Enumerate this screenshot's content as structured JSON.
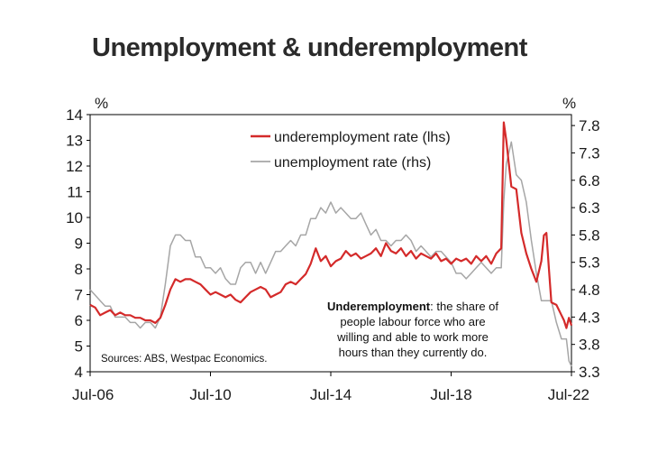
{
  "title": "Unemployment & underemployment",
  "chart_data": {
    "type": "line",
    "x_ticks": [
      "Jul-06",
      "Jul-10",
      "Jul-14",
      "Jul-18",
      "Jul-22"
    ],
    "y_left": {
      "unit": "%",
      "ticks": [
        4,
        5,
        6,
        7,
        8,
        9,
        10,
        11,
        12,
        13,
        14
      ],
      "ylim": [
        4,
        14
      ]
    },
    "y_right": {
      "unit": "%",
      "ticks": [
        "3.3",
        "3.8",
        "4.3",
        "4.8",
        "5.3",
        "5.8",
        "6.3",
        "6.8",
        "7.3",
        "7.8"
      ],
      "ylim": [
        3.3,
        8.0
      ]
    },
    "grid": false,
    "legend_position": "top-center",
    "series": [
      {
        "name": "underemployment rate (lhs)",
        "axis": "left",
        "color": "#d42a2a",
        "points": [
          [
            "2006-07",
            6.6
          ],
          [
            "2006-09",
            6.5
          ],
          [
            "2006-11",
            6.2
          ],
          [
            "2007-01",
            6.3
          ],
          [
            "2007-03",
            6.4
          ],
          [
            "2007-05",
            6.2
          ],
          [
            "2007-07",
            6.3
          ],
          [
            "2007-09",
            6.2
          ],
          [
            "2007-11",
            6.2
          ],
          [
            "2008-01",
            6.1
          ],
          [
            "2008-03",
            6.1
          ],
          [
            "2008-05",
            6.0
          ],
          [
            "2008-07",
            6.0
          ],
          [
            "2008-09",
            5.9
          ],
          [
            "2008-11",
            6.1
          ],
          [
            "2009-01",
            6.6
          ],
          [
            "2009-03",
            7.2
          ],
          [
            "2009-05",
            7.6
          ],
          [
            "2009-07",
            7.5
          ],
          [
            "2009-09",
            7.6
          ],
          [
            "2009-11",
            7.6
          ],
          [
            "2010-01",
            7.5
          ],
          [
            "2010-03",
            7.4
          ],
          [
            "2010-05",
            7.2
          ],
          [
            "2010-07",
            7.0
          ],
          [
            "2010-09",
            7.1
          ],
          [
            "2010-11",
            7.0
          ],
          [
            "2011-01",
            6.9
          ],
          [
            "2011-03",
            7.0
          ],
          [
            "2011-05",
            6.8
          ],
          [
            "2011-07",
            6.7
          ],
          [
            "2011-09",
            6.9
          ],
          [
            "2011-11",
            7.1
          ],
          [
            "2012-01",
            7.2
          ],
          [
            "2012-03",
            7.3
          ],
          [
            "2012-05",
            7.2
          ],
          [
            "2012-07",
            6.9
          ],
          [
            "2012-09",
            7.0
          ],
          [
            "2012-11",
            7.1
          ],
          [
            "2013-01",
            7.4
          ],
          [
            "2013-03",
            7.5
          ],
          [
            "2013-05",
            7.4
          ],
          [
            "2013-07",
            7.6
          ],
          [
            "2013-09",
            7.8
          ],
          [
            "2013-11",
            8.2
          ],
          [
            "2014-01",
            8.8
          ],
          [
            "2014-03",
            8.3
          ],
          [
            "2014-05",
            8.5
          ],
          [
            "2014-07",
            8.1
          ],
          [
            "2014-09",
            8.3
          ],
          [
            "2014-11",
            8.4
          ],
          [
            "2015-01",
            8.7
          ],
          [
            "2015-03",
            8.5
          ],
          [
            "2015-05",
            8.6
          ],
          [
            "2015-07",
            8.4
          ],
          [
            "2015-09",
            8.5
          ],
          [
            "2015-11",
            8.6
          ],
          [
            "2016-01",
            8.8
          ],
          [
            "2016-03",
            8.5
          ],
          [
            "2016-05",
            9.0
          ],
          [
            "2016-07",
            8.7
          ],
          [
            "2016-09",
            8.6
          ],
          [
            "2016-11",
            8.8
          ],
          [
            "2017-01",
            8.5
          ],
          [
            "2017-03",
            8.7
          ],
          [
            "2017-05",
            8.4
          ],
          [
            "2017-07",
            8.6
          ],
          [
            "2017-09",
            8.5
          ],
          [
            "2017-11",
            8.4
          ],
          [
            "2018-01",
            8.6
          ],
          [
            "2018-03",
            8.3
          ],
          [
            "2018-05",
            8.4
          ],
          [
            "2018-07",
            8.2
          ],
          [
            "2018-09",
            8.4
          ],
          [
            "2018-11",
            8.3
          ],
          [
            "2019-01",
            8.4
          ],
          [
            "2019-03",
            8.2
          ],
          [
            "2019-05",
            8.5
          ],
          [
            "2019-07",
            8.3
          ],
          [
            "2019-09",
            8.5
          ],
          [
            "2019-11",
            8.2
          ],
          [
            "2020-01",
            8.6
          ],
          [
            "2020-03",
            8.8
          ],
          [
            "2020-04",
            13.7
          ],
          [
            "2020-05",
            13.0
          ],
          [
            "2020-07",
            11.2
          ],
          [
            "2020-09",
            11.1
          ],
          [
            "2020-11",
            9.4
          ],
          [
            "2021-01",
            8.6
          ],
          [
            "2021-03",
            8.0
          ],
          [
            "2021-05",
            7.5
          ],
          [
            "2021-07",
            8.3
          ],
          [
            "2021-08",
            9.3
          ],
          [
            "2021-09",
            9.4
          ],
          [
            "2021-10",
            8.0
          ],
          [
            "2021-11",
            6.7
          ],
          [
            "2022-01",
            6.6
          ],
          [
            "2022-03",
            6.2
          ],
          [
            "2022-04",
            6.0
          ],
          [
            "2022-05",
            5.7
          ],
          [
            "2022-06",
            6.1
          ],
          [
            "2022-07",
            5.8
          ]
        ]
      },
      {
        "name": "unemployment rate (rhs)",
        "axis": "right",
        "color": "#a6a6a6",
        "points": [
          [
            "2006-07",
            4.8
          ],
          [
            "2006-09",
            4.7
          ],
          [
            "2006-11",
            4.6
          ],
          [
            "2007-01",
            4.5
          ],
          [
            "2007-03",
            4.5
          ],
          [
            "2007-05",
            4.3
          ],
          [
            "2007-07",
            4.3
          ],
          [
            "2007-09",
            4.3
          ],
          [
            "2007-11",
            4.2
          ],
          [
            "2008-01",
            4.2
          ],
          [
            "2008-03",
            4.1
          ],
          [
            "2008-05",
            4.2
          ],
          [
            "2008-07",
            4.2
          ],
          [
            "2008-09",
            4.1
          ],
          [
            "2008-11",
            4.3
          ],
          [
            "2009-01",
            4.9
          ],
          [
            "2009-03",
            5.6
          ],
          [
            "2009-05",
            5.8
          ],
          [
            "2009-07",
            5.8
          ],
          [
            "2009-09",
            5.7
          ],
          [
            "2009-11",
            5.7
          ],
          [
            "2010-01",
            5.4
          ],
          [
            "2010-03",
            5.4
          ],
          [
            "2010-05",
            5.2
          ],
          [
            "2010-07",
            5.2
          ],
          [
            "2010-09",
            5.1
          ],
          [
            "2010-11",
            5.2
          ],
          [
            "2011-01",
            5.0
          ],
          [
            "2011-03",
            4.9
          ],
          [
            "2011-05",
            4.9
          ],
          [
            "2011-07",
            5.2
          ],
          [
            "2011-09",
            5.3
          ],
          [
            "2011-11",
            5.3
          ],
          [
            "2012-01",
            5.1
          ],
          [
            "2012-03",
            5.3
          ],
          [
            "2012-05",
            5.1
          ],
          [
            "2012-07",
            5.3
          ],
          [
            "2012-09",
            5.5
          ],
          [
            "2012-11",
            5.5
          ],
          [
            "2013-01",
            5.6
          ],
          [
            "2013-03",
            5.7
          ],
          [
            "2013-05",
            5.6
          ],
          [
            "2013-07",
            5.8
          ],
          [
            "2013-09",
            5.8
          ],
          [
            "2013-11",
            6.1
          ],
          [
            "2014-01",
            6.1
          ],
          [
            "2014-03",
            6.3
          ],
          [
            "2014-05",
            6.2
          ],
          [
            "2014-07",
            6.4
          ],
          [
            "2014-09",
            6.2
          ],
          [
            "2014-11",
            6.3
          ],
          [
            "2015-01",
            6.2
          ],
          [
            "2015-03",
            6.1
          ],
          [
            "2015-05",
            6.1
          ],
          [
            "2015-07",
            6.2
          ],
          [
            "2015-09",
            6.0
          ],
          [
            "2015-11",
            5.8
          ],
          [
            "2016-01",
            5.9
          ],
          [
            "2016-03",
            5.7
          ],
          [
            "2016-05",
            5.7
          ],
          [
            "2016-07",
            5.6
          ],
          [
            "2016-09",
            5.7
          ],
          [
            "2016-11",
            5.7
          ],
          [
            "2017-01",
            5.8
          ],
          [
            "2017-03",
            5.7
          ],
          [
            "2017-05",
            5.5
          ],
          [
            "2017-07",
            5.6
          ],
          [
            "2017-09",
            5.5
          ],
          [
            "2017-11",
            5.4
          ],
          [
            "2018-01",
            5.5
          ],
          [
            "2018-03",
            5.5
          ],
          [
            "2018-05",
            5.4
          ],
          [
            "2018-07",
            5.3
          ],
          [
            "2018-09",
            5.1
          ],
          [
            "2018-11",
            5.1
          ],
          [
            "2019-01",
            5.0
          ],
          [
            "2019-03",
            5.1
          ],
          [
            "2019-05",
            5.2
          ],
          [
            "2019-07",
            5.3
          ],
          [
            "2019-09",
            5.2
          ],
          [
            "2019-11",
            5.1
          ],
          [
            "2020-01",
            5.2
          ],
          [
            "2020-03",
            5.2
          ],
          [
            "2020-04",
            6.4
          ],
          [
            "2020-05",
            7.1
          ],
          [
            "2020-07",
            7.5
          ],
          [
            "2020-09",
            6.9
          ],
          [
            "2020-11",
            6.8
          ],
          [
            "2021-01",
            6.4
          ],
          [
            "2021-03",
            5.7
          ],
          [
            "2021-05",
            5.1
          ],
          [
            "2021-07",
            4.6
          ],
          [
            "2021-09",
            4.6
          ],
          [
            "2021-11",
            4.6
          ],
          [
            "2022-01",
            4.2
          ],
          [
            "2022-03",
            3.9
          ],
          [
            "2022-05",
            3.9
          ],
          [
            "2022-06",
            3.5
          ],
          [
            "2022-07",
            3.4
          ]
        ]
      }
    ],
    "annotation": {
      "bold": "Underemployment",
      "lines": [
        ": the share of",
        "people labour force who are",
        "willing and able to work more",
        "hours than they currently do."
      ]
    },
    "source": "Sources: ABS, Westpac Economics."
  }
}
